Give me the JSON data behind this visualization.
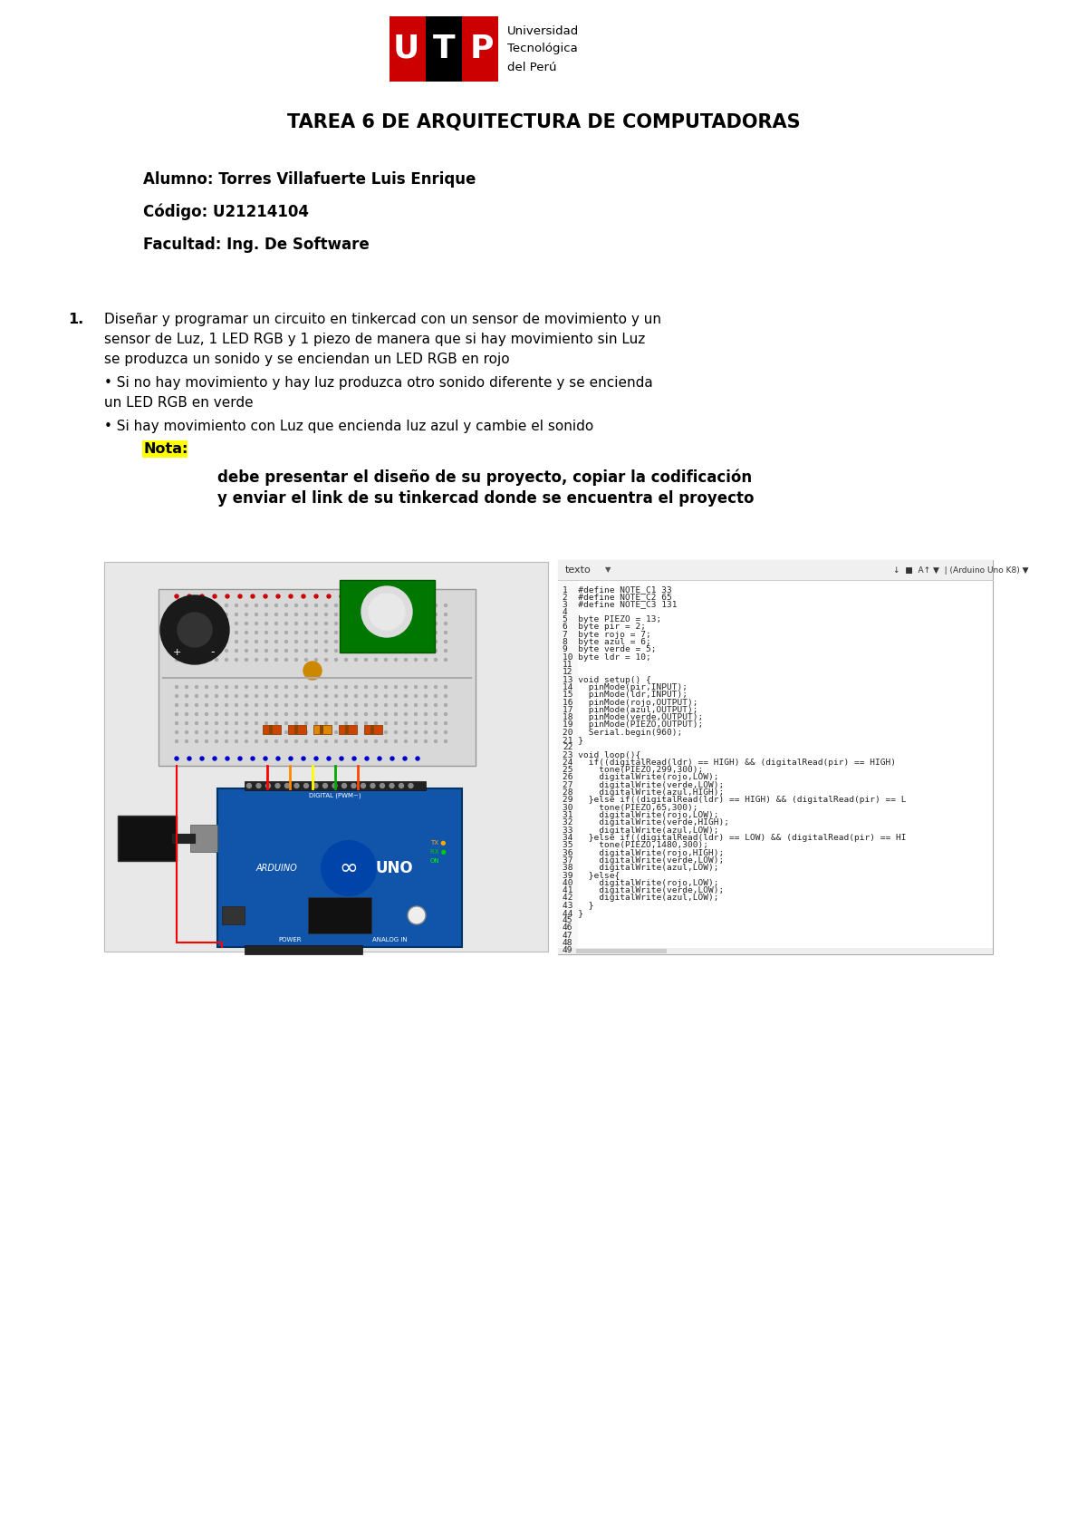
{
  "title": "TAREA 6 DE ARQUITECTURA DE COMPUTADORAS",
  "alumno": "Alumno: Torres Villafuerte Luis Enrique",
  "codigo": "Código: U21214104",
  "facultad": "Facultad: Ing. De Software",
  "item1_text1": "Diseñar y programar un circuito en tinkercad con un sensor de movimiento y un",
  "item1_text2": "sensor de Luz, 1 LED RGB y 1 piezo de manera que si hay movimiento sin Luz",
  "item1_text3": "se produzca un sonido y se enciendan un LED RGB en rojo",
  "bullet1": "• Si no hay movimiento y hay luz produzca otro sonido diferente y se encienda",
  "bullet1b": "un LED RGB en verde",
  "bullet2": "• Si hay movimiento con Luz que encienda luz azul y cambie el sonido",
  "nota_label": "Nota:",
  "nota_text1": "debe presentar el diseño de su proyecto, copiar la codificación",
  "nota_text2": "y enviar el link de su tinkercad donde se encuentra el proyecto",
  "bg_color": "#ffffff",
  "nota_highlight": "#ffff00",
  "logo_utp_red": "#cc0000",
  "logo_utp_black": "#000000",
  "code_lines": [
    "1  #define NOTE_C1 33",
    "2  #define NOTE_C2 65",
    "3  #define NOTE_C3 131",
    "4",
    "5  byte PIEZO = 13;",
    "6  byte pir = 2;",
    "7  byte rojo = 7;",
    "8  byte azul = 6;",
    "9  byte verde = 5;",
    "10 byte ldr = 10;",
    "11",
    "12",
    "13 void setup() {",
    "14   pinMode(pir,INPUT);",
    "15   pinMode(ldr,INPUT);",
    "16   pinMode(rojo,OUTPUT);",
    "17   pinMode(azul,OUTPUT);",
    "18   pinMode(verde,OUTPUT);",
    "19   pinMode(PIEZO,OUTPUT);",
    "20   Serial.begin(960);",
    "21 }",
    "22",
    "23 void loop(){",
    "24   if((digitalRead(ldr) == HIGH) && (digitalRead(pir) == HIGH)",
    "25     tone(PIEZO,299,300);",
    "26     digitalWrite(rojo,LOW);",
    "27     digitalWrite(verde,LOW);",
    "28     digitalWrite(azul,HIGH);",
    "29   }else if((digitalRead(ldr) == HIGH) && (digitalRead(pir) == L",
    "30     tone(PIEZO,65,300);",
    "31     digitalWrite(rojo,LOW);",
    "32     digitalWrite(verde,HIGH);",
    "33     digitalWrite(azul,LOW);",
    "34   }else if((digitalRead(ldr) == LOW) && (digitalRead(pir) == HI",
    "35     tone(PIEZO,1480,300);",
    "36     digitalWrite(rojo,HIGH);",
    "37     digitalWrite(verde,LOW);",
    "38     digitalWrite(azul,LOW);",
    "39   }else{",
    "40     digitalWrite(rojo,LOW);",
    "41     digitalWrite(verde,LOW);",
    "42     digitalWrite(azul,LOW);",
    "43   }",
    "44 }",
    "45",
    "46",
    "47",
    "48",
    "49"
  ]
}
